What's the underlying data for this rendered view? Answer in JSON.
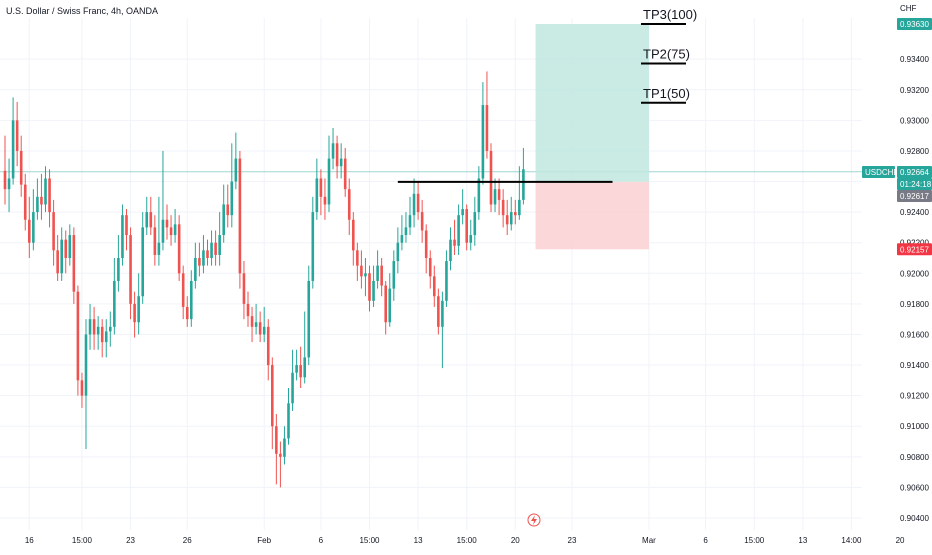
{
  "header": {
    "title": "U.S. Dollar / Swiss Franc, 4h, OANDA"
  },
  "colors": {
    "up": "#26a69a",
    "down": "#ef5350",
    "profit_zone": "#bfe8df",
    "loss_zone": "#fbd3d5",
    "axis_text": "#131722",
    "grid": "#f0f3fa",
    "tp_line": "#000000",
    "current_badge": "#26a69a",
    "grey_badge": "#787b86",
    "stop_badge": "#f23645"
  },
  "chart_data": {
    "type": "candlestick",
    "title": "U.S. Dollar / Swiss Franc, 4h, OANDA",
    "currency_label": "CHF",
    "y_ticks": [
      0.904,
      0.906,
      0.908,
      0.91,
      0.912,
      0.914,
      0.916,
      0.918,
      0.92,
      0.922,
      0.924,
      0.926,
      0.928,
      0.93,
      0.932,
      0.934
    ],
    "y_tick_labels": [
      "0.90400",
      "0.90600",
      "0.90800",
      "0.91000",
      "0.91200",
      "0.91400",
      "0.91600",
      "0.91800",
      "0.92000",
      "0.92200",
      "0.92400",
      "0.92600",
      "0.92800",
      "0.93000",
      "0.93200",
      "0.93400"
    ],
    "ylim": [
      0.9036,
      0.9378
    ],
    "x_ticks": [
      {
        "i": 6,
        "label": "16"
      },
      {
        "i": 19,
        "label": "15:00"
      },
      {
        "i": 31,
        "label": "23"
      },
      {
        "i": 45,
        "label": "26"
      },
      {
        "i": 64,
        "label": "Feb"
      },
      {
        "i": 78,
        "label": "6"
      },
      {
        "i": 90,
        "label": "15:00"
      },
      {
        "i": 102,
        "label": "13"
      },
      {
        "i": 114,
        "label": "15:00"
      },
      {
        "i": 126,
        "label": "20"
      },
      {
        "i": 140,
        "label": "23"
      },
      {
        "i": 159,
        "label": "Mar"
      },
      {
        "i": 173,
        "label": "6"
      },
      {
        "i": 185,
        "label": "15:00"
      },
      {
        "i": 197,
        "label": "13"
      },
      {
        "i": 209,
        "label": "14:00"
      },
      {
        "i": 221,
        "label": "20"
      }
    ],
    "candles": [
      [
        0.9267,
        0.9255,
        0.929,
        0.9245
      ],
      [
        0.9255,
        0.9262,
        0.9275,
        0.924
      ],
      [
        0.9262,
        0.93,
        0.9315,
        0.9258
      ],
      [
        0.93,
        0.928,
        0.9312,
        0.927
      ],
      [
        0.928,
        0.9258,
        0.929,
        0.925
      ],
      [
        0.9258,
        0.9235,
        0.9265,
        0.9228
      ],
      [
        0.9235,
        0.922,
        0.925,
        0.921
      ],
      [
        0.922,
        0.924,
        0.9255,
        0.9215
      ],
      [
        0.924,
        0.925,
        0.9262,
        0.9235
      ],
      [
        0.925,
        0.9245,
        0.9265,
        0.9235
      ],
      [
        0.9245,
        0.9262,
        0.927,
        0.924
      ],
      [
        0.9262,
        0.924,
        0.9268,
        0.923
      ],
      [
        0.924,
        0.9215,
        0.9248,
        0.9205
      ],
      [
        0.9215,
        0.92,
        0.9225,
        0.9195
      ],
      [
        0.92,
        0.9222,
        0.923,
        0.9195
      ],
      [
        0.9222,
        0.921,
        0.9228,
        0.92
      ],
      [
        0.921,
        0.9225,
        0.9232,
        0.9205
      ],
      [
        0.9225,
        0.9188,
        0.923,
        0.918
      ],
      [
        0.9188,
        0.913,
        0.9192,
        0.912
      ],
      [
        0.913,
        0.912,
        0.9135,
        0.9112
      ],
      [
        0.912,
        0.916,
        0.917,
        0.9085
      ],
      [
        0.916,
        0.917,
        0.918,
        0.915
      ],
      [
        0.917,
        0.916,
        0.9178,
        0.915
      ],
      [
        0.916,
        0.9165,
        0.9172,
        0.915
      ],
      [
        0.9165,
        0.9155,
        0.917,
        0.9145
      ],
      [
        0.9155,
        0.9162,
        0.917,
        0.9145
      ],
      [
        0.9162,
        0.9165,
        0.9175,
        0.9152
      ],
      [
        0.9165,
        0.9195,
        0.921,
        0.916
      ],
      [
        0.9195,
        0.921,
        0.9225,
        0.9188
      ],
      [
        0.921,
        0.9238,
        0.9245,
        0.9205
      ],
      [
        0.9238,
        0.9225,
        0.9242,
        0.9215
      ],
      [
        0.9225,
        0.918,
        0.923,
        0.917
      ],
      [
        0.918,
        0.9168,
        0.9188,
        0.9158
      ],
      [
        0.9168,
        0.9185,
        0.92,
        0.916
      ],
      [
        0.9185,
        0.923,
        0.924,
        0.918
      ],
      [
        0.923,
        0.924,
        0.925,
        0.9225
      ],
      [
        0.924,
        0.923,
        0.925,
        0.9225
      ],
      [
        0.923,
        0.9212,
        0.9238,
        0.9205
      ],
      [
        0.9212,
        0.922,
        0.925,
        0.9205
      ],
      [
        0.922,
        0.9235,
        0.928,
        0.9215
      ],
      [
        0.9235,
        0.923,
        0.9245,
        0.9222
      ],
      [
        0.923,
        0.9225,
        0.9238,
        0.9218
      ],
      [
        0.9225,
        0.9232,
        0.9242,
        0.922
      ],
      [
        0.9232,
        0.92,
        0.9238,
        0.9195
      ],
      [
        0.92,
        0.9178,
        0.9205,
        0.917
      ],
      [
        0.9178,
        0.917,
        0.9185,
        0.9165
      ],
      [
        0.917,
        0.9195,
        0.9202,
        0.9165
      ],
      [
        0.9195,
        0.921,
        0.922,
        0.919
      ],
      [
        0.921,
        0.9205,
        0.922,
        0.9198
      ],
      [
        0.9205,
        0.9215,
        0.9225,
        0.92
      ],
      [
        0.9215,
        0.921,
        0.9222,
        0.9205
      ],
      [
        0.921,
        0.922,
        0.9228,
        0.9205
      ],
      [
        0.922,
        0.9212,
        0.9228,
        0.9205
      ],
      [
        0.9212,
        0.9225,
        0.924,
        0.9205
      ],
      [
        0.9225,
        0.9245,
        0.9258,
        0.922
      ],
      [
        0.9245,
        0.9238,
        0.9258,
        0.923
      ],
      [
        0.9238,
        0.926,
        0.9285,
        0.923
      ],
      [
        0.926,
        0.9275,
        0.9292,
        0.9255
      ],
      [
        0.9275,
        0.92,
        0.928,
        0.919
      ],
      [
        0.92,
        0.918,
        0.9208,
        0.917
      ],
      [
        0.918,
        0.9172,
        0.9188,
        0.9165
      ],
      [
        0.9172,
        0.9165,
        0.9178,
        0.9155
      ],
      [
        0.9165,
        0.9168,
        0.918,
        0.916
      ],
      [
        0.9168,
        0.916,
        0.9175,
        0.9155
      ],
      [
        0.916,
        0.9165,
        0.9178,
        0.9155
      ],
      [
        0.9165,
        0.914,
        0.917,
        0.913
      ],
      [
        0.914,
        0.91,
        0.9145,
        0.9085
      ],
      [
        0.91,
        0.9082,
        0.9108,
        0.9062
      ],
      [
        0.9082,
        0.908,
        0.909,
        0.906
      ],
      [
        0.908,
        0.9092,
        0.91,
        0.9075
      ],
      [
        0.9092,
        0.9115,
        0.9125,
        0.9088
      ],
      [
        0.9115,
        0.9135,
        0.915,
        0.911
      ],
      [
        0.9135,
        0.914,
        0.915,
        0.913
      ],
      [
        0.914,
        0.9132,
        0.9152,
        0.9125
      ],
      [
        0.9132,
        0.9145,
        0.9175,
        0.9128
      ],
      [
        0.9145,
        0.9195,
        0.9205,
        0.914
      ],
      [
        0.9195,
        0.924,
        0.925,
        0.919
      ],
      [
        0.924,
        0.9262,
        0.9275,
        0.9235
      ],
      [
        0.9262,
        0.925,
        0.9268,
        0.9238
      ],
      [
        0.925,
        0.9245,
        0.9262,
        0.9235
      ],
      [
        0.9245,
        0.9275,
        0.929,
        0.924
      ],
      [
        0.9275,
        0.9285,
        0.9295,
        0.9268
      ],
      [
        0.9285,
        0.927,
        0.929,
        0.9262
      ],
      [
        0.927,
        0.9275,
        0.9285,
        0.9262
      ],
      [
        0.9275,
        0.9255,
        0.9282,
        0.925
      ],
      [
        0.9255,
        0.9235,
        0.9262,
        0.9225
      ],
      [
        0.9235,
        0.9215,
        0.924,
        0.9205
      ],
      [
        0.9215,
        0.9205,
        0.922,
        0.9195
      ],
      [
        0.9205,
        0.9198,
        0.9215,
        0.919
      ],
      [
        0.9198,
        0.92,
        0.921,
        0.9185
      ],
      [
        0.92,
        0.9182,
        0.9205,
        0.9175
      ],
      [
        0.9182,
        0.9195,
        0.9205,
        0.9178
      ],
      [
        0.9195,
        0.9205,
        0.9215,
        0.919
      ],
      [
        0.9205,
        0.9192,
        0.921,
        0.9185
      ],
      [
        0.9192,
        0.9168,
        0.9195,
        0.916
      ],
      [
        0.9168,
        0.919,
        0.92,
        0.9165
      ],
      [
        0.919,
        0.9208,
        0.9215,
        0.9182
      ],
      [
        0.9208,
        0.922,
        0.923,
        0.92
      ],
      [
        0.922,
        0.9225,
        0.9238,
        0.9215
      ],
      [
        0.9225,
        0.923,
        0.924,
        0.922
      ],
      [
        0.923,
        0.9238,
        0.925,
        0.9225
      ],
      [
        0.9238,
        0.9252,
        0.9262,
        0.923
      ],
      [
        0.9252,
        0.924,
        0.926,
        0.9235
      ],
      [
        0.924,
        0.9228,
        0.9248,
        0.922
      ],
      [
        0.9228,
        0.921,
        0.9232,
        0.92
      ],
      [
        0.921,
        0.9198,
        0.9215,
        0.919
      ],
      [
        0.9198,
        0.9185,
        0.9205,
        0.9178
      ],
      [
        0.9185,
        0.9165,
        0.919,
        0.916
      ],
      [
        0.9165,
        0.9182,
        0.9188,
        0.9138
      ],
      [
        0.9182,
        0.9208,
        0.9215,
        0.9178
      ],
      [
        0.9208,
        0.9222,
        0.923,
        0.9202
      ],
      [
        0.9222,
        0.9218,
        0.9235,
        0.9212
      ],
      [
        0.9218,
        0.9238,
        0.9245,
        0.9212
      ],
      [
        0.9238,
        0.9242,
        0.9255,
        0.9232
      ],
      [
        0.9242,
        0.922,
        0.9245,
        0.9215
      ],
      [
        0.922,
        0.9225,
        0.9235,
        0.9215
      ],
      [
        0.9225,
        0.924,
        0.925,
        0.9218
      ],
      [
        0.924,
        0.9262,
        0.927,
        0.9235
      ],
      [
        0.9262,
        0.931,
        0.9325,
        0.9258
      ],
      [
        0.931,
        0.928,
        0.9332,
        0.9275
      ],
      [
        0.928,
        0.9245,
        0.9285,
        0.924
      ],
      [
        0.9245,
        0.9255,
        0.9262,
        0.924
      ],
      [
        0.9255,
        0.9248,
        0.9262,
        0.9238
      ],
      [
        0.9248,
        0.9238,
        0.9255,
        0.923
      ],
      [
        0.9238,
        0.9232,
        0.9248,
        0.9225
      ],
      [
        0.9232,
        0.924,
        0.925,
        0.9228
      ],
      [
        0.924,
        0.9238,
        0.9248,
        0.9232
      ],
      [
        0.9238,
        0.9248,
        0.927,
        0.9235
      ],
      [
        0.9248,
        0.9268,
        0.9282,
        0.9245
      ]
    ],
    "entry_line": {
      "price": 0.92598,
      "from_i": 97,
      "to_i": 150
    },
    "position": {
      "from_i": 131,
      "to_i": 159,
      "entry": 0.92598,
      "target": 0.9363,
      "stop": 0.92157
    },
    "take_profits": [
      {
        "label": "TP1(50)",
        "price": 0.93115
      },
      {
        "label": "TP2(75)",
        "price": 0.93372
      },
      {
        "label": "TP3(100)",
        "price": 0.9363
      }
    ],
    "price_badges": {
      "target": "0.93630",
      "symbol": "USDCHF",
      "current": "0.92664",
      "countdown": "01:24:18",
      "grey": "0.92617",
      "stop": "0.92157"
    }
  }
}
